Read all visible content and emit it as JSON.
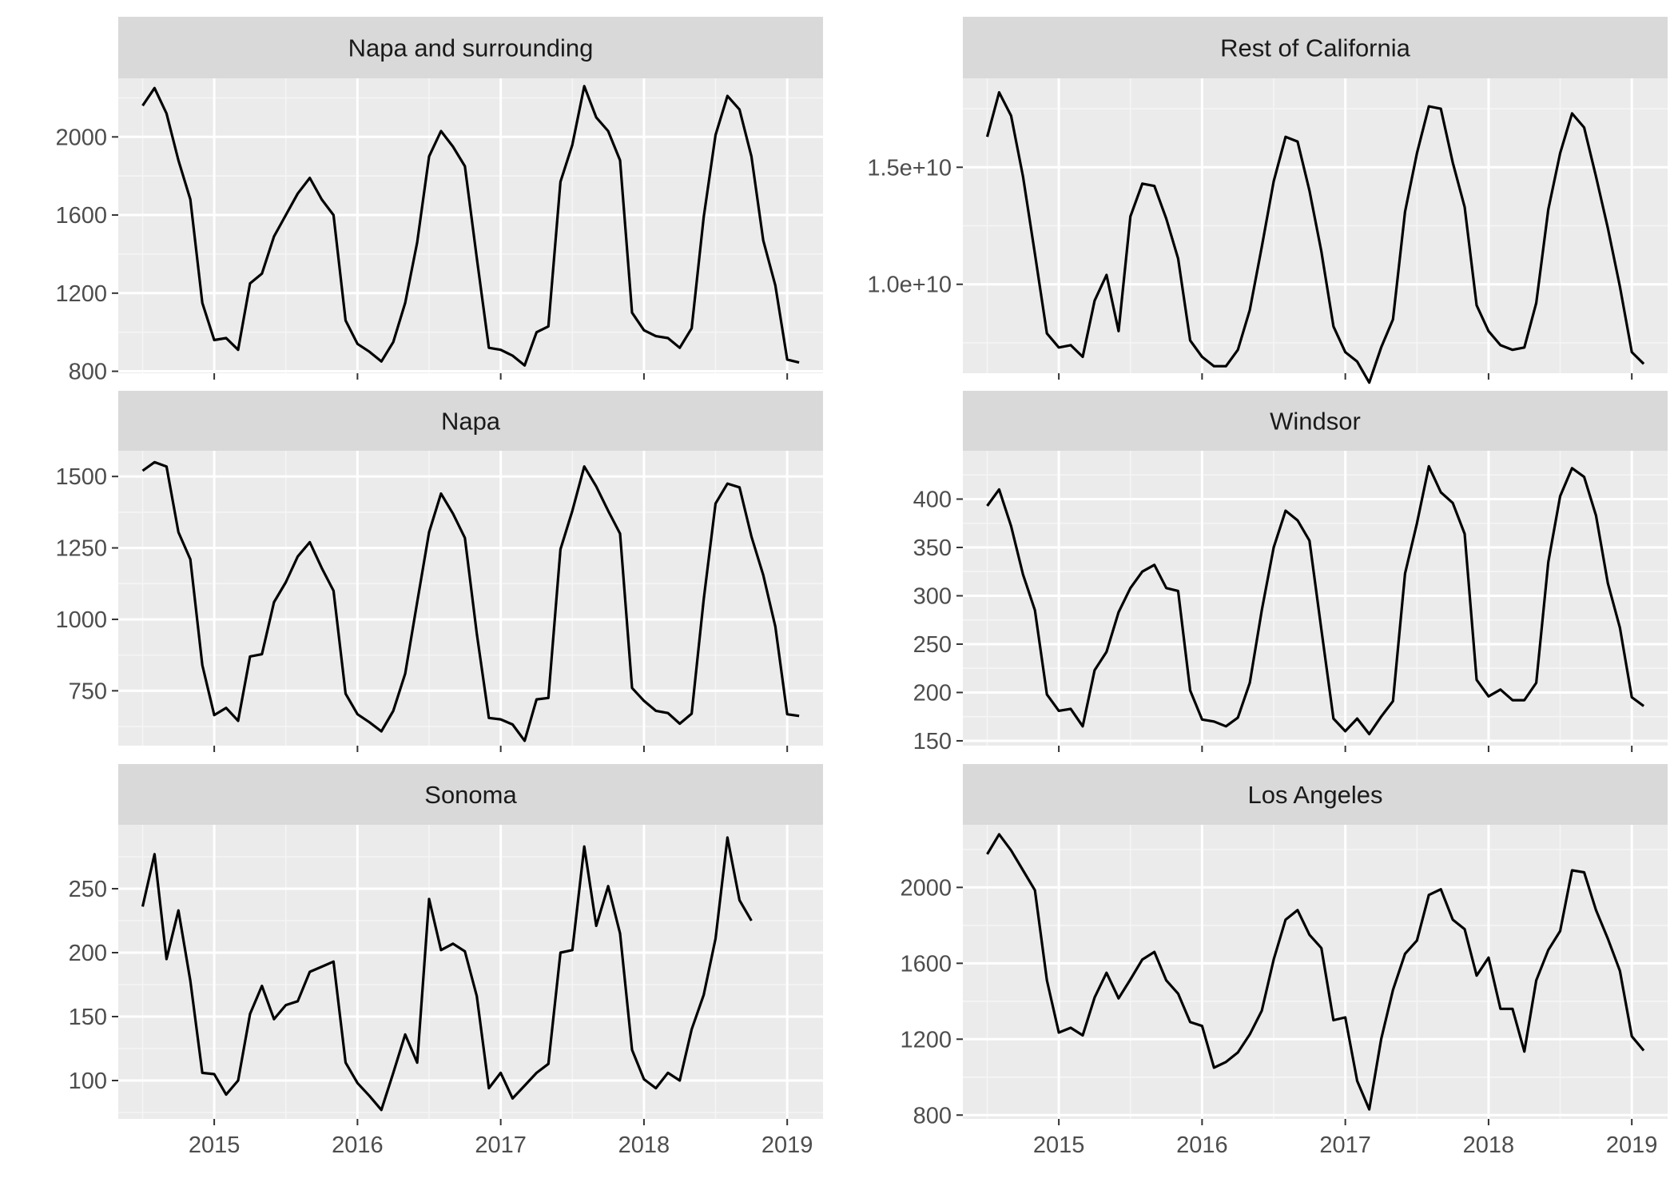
{
  "chart_data": [
    {
      "type": "line",
      "title": "Napa and surrounding",
      "xlim": [
        2014.33,
        2019.25
      ],
      "ylim": [
        790,
        2300
      ],
      "y_ticks": [
        800,
        1200,
        1600,
        2000
      ],
      "y_tick_labels": [
        "800",
        "1200",
        "1600",
        "2000"
      ],
      "x": [
        2014.5,
        2014.583,
        2014.667,
        2014.75,
        2014.833,
        2014.917,
        2015.0,
        2015.083,
        2015.167,
        2015.25,
        2015.333,
        2015.417,
        2015.5,
        2015.583,
        2015.667,
        2015.75,
        2015.833,
        2015.917,
        2016.0,
        2016.083,
        2016.167,
        2016.25,
        2016.333,
        2016.417,
        2016.5,
        2016.583,
        2016.667,
        2016.75,
        2016.833,
        2016.917,
        2017.0,
        2017.083,
        2017.167,
        2017.25,
        2017.333,
        2017.417,
        2017.5,
        2017.583,
        2017.667,
        2017.75,
        2017.833,
        2017.917,
        2018.0,
        2018.083,
        2018.167,
        2018.25,
        2018.333,
        2018.417,
        2018.5,
        2018.583,
        2018.667,
        2018.75,
        2018.833,
        2018.917,
        2019.0
      ],
      "y": [
        2160,
        2250,
        2120,
        1880,
        1680,
        1150,
        960,
        970,
        910,
        1250,
        1300,
        1490,
        1600,
        1710,
        1790,
        1680,
        1600,
        1060,
        940,
        900,
        850,
        950,
        1150,
        1460,
        1900,
        2030,
        1950,
        1850,
        1380,
        920,
        910,
        880,
        830,
        1000,
        1030,
        1770,
        1960,
        2260,
        2100,
        2030,
        1880,
        1100,
        1010,
        980,
        970,
        920,
        1020,
        1590,
        2010,
        2210,
        2140,
        1900,
        1470,
        1240,
        860
      ],
      "y_last": 845
    },
    {
      "type": "line",
      "title": "Rest of California",
      "xlim": [
        2014.33,
        2019.25
      ],
      "ylim": [
        6200000000.0,
        18800000000.0
      ],
      "y_ticks": [
        10000000000.0,
        15000000000.0
      ],
      "y_tick_labels": [
        "1.0e+10",
        "1.5e+10"
      ],
      "x": [
        2014.5,
        2014.583,
        2014.667,
        2014.75,
        2014.833,
        2014.917,
        2015.0,
        2015.083,
        2015.167,
        2015.25,
        2015.333,
        2015.417,
        2015.5,
        2015.583,
        2015.667,
        2015.75,
        2015.833,
        2015.917,
        2016.0,
        2016.083,
        2016.167,
        2016.25,
        2016.333,
        2016.417,
        2016.5,
        2016.583,
        2016.667,
        2016.75,
        2016.833,
        2016.917,
        2017.0,
        2017.083,
        2017.167,
        2017.25,
        2017.333,
        2017.417,
        2017.5,
        2017.583,
        2017.667,
        2017.75,
        2017.833,
        2017.917,
        2018.0,
        2018.083,
        2018.167,
        2018.25,
        2018.333,
        2018.417,
        2018.5,
        2018.583,
        2018.667,
        2018.75,
        2018.833,
        2018.917,
        2019.0,
        2019.083
      ],
      "y": [
        16300000000.0,
        18200000000.0,
        17200000000.0,
        14600000000.0,
        11300000000.0,
        7900000000.0,
        7300000000.0,
        7400000000.0,
        6900000000.0,
        9300000000.0,
        10400000000.0,
        8000000000.0,
        12900000000.0,
        14300000000.0,
        14200000000.0,
        12800000000.0,
        11100000000.0,
        7600000000.0,
        6900000000.0,
        6500000000.0,
        6500000000.0,
        7200000000.0,
        8900000000.0,
        11600000000.0,
        14400000000.0,
        16300000000.0,
        16100000000.0,
        14000000000.0,
        11400000000.0,
        8200000000.0,
        7100000000.0,
        6700000000.0,
        5800000000.0,
        7300000000.0,
        8500000000.0,
        13100000000.0,
        15600000000.0,
        17600000000.0,
        17500000000.0,
        15200000000.0,
        13300000000.0,
        9100000000.0,
        8000000000.0,
        7400000000.0,
        7200000000.0,
        7300000000.0,
        9200000000.0,
        13200000000.0,
        15600000000.0,
        17300000000.0,
        16700000000.0,
        14600000000.0,
        12400000000.0,
        9900000000.0,
        7100000000.0,
        6600000000.0
      ]
    },
    {
      "type": "line",
      "title": "Napa",
      "xlim": [
        2014.33,
        2019.25
      ],
      "ylim": [
        558,
        1590
      ],
      "y_ticks": [
        750,
        1000,
        1250,
        1500
      ],
      "y_tick_labels": [
        "750",
        "1000",
        "1250",
        "1500"
      ],
      "x": [
        2014.5,
        2014.583,
        2014.667,
        2014.75,
        2014.833,
        2014.917,
        2015.0,
        2015.083,
        2015.167,
        2015.25,
        2015.333,
        2015.417,
        2015.5,
        2015.583,
        2015.667,
        2015.75,
        2015.833,
        2015.917,
        2016.0,
        2016.083,
        2016.167,
        2016.25,
        2016.333,
        2016.417,
        2016.5,
        2016.583,
        2016.667,
        2016.75,
        2016.833,
        2016.917,
        2017.0,
        2017.083,
        2017.167,
        2017.25,
        2017.333,
        2017.417,
        2017.5,
        2017.583,
        2017.667,
        2017.75,
        2017.833,
        2017.917,
        2018.0,
        2018.083,
        2018.167,
        2018.25,
        2018.333,
        2018.417,
        2018.5,
        2018.583,
        2018.667,
        2018.75,
        2018.833,
        2018.917,
        2019.0,
        2019.083
      ],
      "y": [
        1520,
        1550,
        1535,
        1305,
        1210,
        840,
        665,
        690,
        645,
        870,
        878,
        1060,
        1130,
        1220,
        1270,
        1180,
        1100,
        740,
        668,
        640,
        608,
        680,
        810,
        1060,
        1305,
        1440,
        1370,
        1285,
        950,
        655,
        650,
        632,
        575,
        720,
        725,
        1245,
        1380,
        1535,
        1465,
        1380,
        1300,
        760,
        715,
        680,
        672,
        635,
        670,
        1070,
        1405,
        1475,
        1462,
        1290,
        1155,
        975,
        668,
        662
      ]
    },
    {
      "type": "line",
      "title": "Windsor",
      "xlim": [
        2014.33,
        2019.25
      ],
      "ylim": [
        145,
        450
      ],
      "y_ticks": [
        150,
        200,
        250,
        300,
        350,
        400
      ],
      "y_tick_labels": [
        "150",
        "200",
        "250",
        "300",
        "350",
        "400"
      ],
      "x": [
        2014.5,
        2014.583,
        2014.667,
        2014.75,
        2014.833,
        2014.917,
        2015.0,
        2015.083,
        2015.167,
        2015.25,
        2015.333,
        2015.417,
        2015.5,
        2015.583,
        2015.667,
        2015.75,
        2015.833,
        2015.917,
        2016.0,
        2016.083,
        2016.167,
        2016.25,
        2016.333,
        2016.417,
        2016.5,
        2016.583,
        2016.667,
        2016.75,
        2016.833,
        2016.917,
        2017.0,
        2017.083,
        2017.167,
        2017.25,
        2017.333,
        2017.417,
        2017.5,
        2017.583,
        2017.667,
        2017.75,
        2017.833,
        2017.917,
        2018.0,
        2018.083,
        2018.167,
        2018.25,
        2018.333,
        2018.417,
        2018.5,
        2018.583,
        2018.667,
        2018.75,
        2018.833,
        2018.917,
        2019.0,
        2019.083
      ],
      "y": [
        393,
        410,
        372,
        322,
        285,
        198,
        181,
        183,
        165,
        223,
        242,
        283,
        308,
        325,
        332,
        308,
        305,
        202,
        172,
        170,
        165,
        174,
        210,
        285,
        350,
        388,
        378,
        357,
        265,
        173,
        160,
        173,
        157,
        175,
        191,
        323,
        375,
        434,
        407,
        396,
        364,
        213,
        196,
        203,
        192,
        192,
        210,
        335,
        403,
        432,
        423,
        383,
        313,
        267,
        195,
        186
      ]
    },
    {
      "type": "line",
      "title": "Sonoma",
      "xlim": [
        2014.33,
        2019.25
      ],
      "ylim": [
        70,
        300
      ],
      "y_ticks": [
        100,
        150,
        200,
        250
      ],
      "y_tick_labels": [
        "100",
        "150",
        "200",
        "250"
      ],
      "x": [
        2014.5,
        2014.583,
        2014.667,
        2014.75,
        2014.833,
        2014.917,
        2015.0,
        2015.083,
        2015.167,
        2015.25,
        2015.333,
        2015.417,
        2015.5,
        2015.583,
        2015.667,
        2015.75,
        2015.833,
        2015.917,
        2016.0,
        2016.083,
        2016.167,
        2016.25,
        2016.333,
        2016.417,
        2016.5,
        2016.583,
        2016.667,
        2016.75,
        2016.833,
        2016.917,
        2017.0,
        2017.083,
        2017.167,
        2017.25,
        2017.333,
        2017.417,
        2017.5,
        2017.583,
        2017.667,
        2017.75,
        2017.833,
        2017.917,
        2018.0,
        2018.083,
        2018.167,
        2018.25,
        2018.333,
        2018.417,
        2018.5,
        2018.583,
        2018.667,
        2018.75
      ],
      "y": [
        236,
        277,
        195,
        233,
        178,
        106,
        105,
        89,
        100,
        152,
        174,
        148,
        159,
        162,
        185,
        189,
        193,
        114,
        98,
        88,
        77,
        106,
        136,
        114,
        242,
        202,
        207,
        201,
        166,
        94,
        106,
        86,
        96,
        106,
        113,
        200,
        202,
        283,
        221,
        252,
        215,
        124,
        101,
        94,
        106,
        100,
        140,
        167,
        211,
        290,
        241,
        225
      ]
    },
    {
      "type": "line",
      "title": "Los Angeles",
      "xlim": [
        2014.33,
        2019.25
      ],
      "ylim": [
        780,
        2330
      ],
      "y_ticks": [
        800,
        1200,
        1600,
        2000
      ],
      "y_tick_labels": [
        "800",
        "1200",
        "1600",
        "2000"
      ],
      "x": [
        2014.5,
        2014.583,
        2014.667,
        2014.75,
        2014.833,
        2014.917,
        2015.0,
        2015.083,
        2015.167,
        2015.25,
        2015.333,
        2015.417,
        2015.5,
        2015.583,
        2015.667,
        2015.75,
        2015.833,
        2015.917,
        2016.0,
        2016.083,
        2016.167,
        2016.25,
        2016.333,
        2016.417,
        2016.5,
        2016.583,
        2016.667,
        2016.75,
        2016.833,
        2016.917,
        2017.0,
        2017.083,
        2017.167,
        2017.25,
        2017.333,
        2017.417,
        2017.5,
        2017.583,
        2017.667,
        2017.75,
        2017.833,
        2017.917,
        2018.0,
        2018.083,
        2018.167,
        2018.25,
        2018.333,
        2018.417,
        2018.5,
        2018.583,
        2018.667,
        2018.75,
        2018.833,
        2018.917,
        2019.0,
        2019.083
      ],
      "y": [
        2175,
        2280,
        2195,
        2090,
        1985,
        1510,
        1235,
        1260,
        1220,
        1420,
        1550,
        1415,
        1515,
        1620,
        1660,
        1510,
        1440,
        1290,
        1270,
        1050,
        1080,
        1130,
        1225,
        1350,
        1620,
        1830,
        1880,
        1750,
        1680,
        1300,
        1315,
        980,
        830,
        1200,
        1460,
        1650,
        1720,
        1960,
        1990,
        1830,
        1780,
        1535,
        1630,
        1360,
        1360,
        1135,
        1510,
        1670,
        1770,
        2090,
        2080,
        1880,
        1730,
        1560,
        1215,
        1140
      ]
    }
  ],
  "x_axis": {
    "ticks": [
      2015,
      2016,
      2017,
      2018,
      2019
    ],
    "tick_labels": [
      "2015",
      "2016",
      "2017",
      "2018",
      "2019"
    ]
  },
  "colors": {
    "panel_background": "#ebebeb",
    "strip_background": "#d9d9d9",
    "grid_major": "#ffffff",
    "grid_minor": "#f5f5f5",
    "line": "#000000",
    "tick_text": "#4d4d4d",
    "strip_text": "#1a1a1a"
  }
}
